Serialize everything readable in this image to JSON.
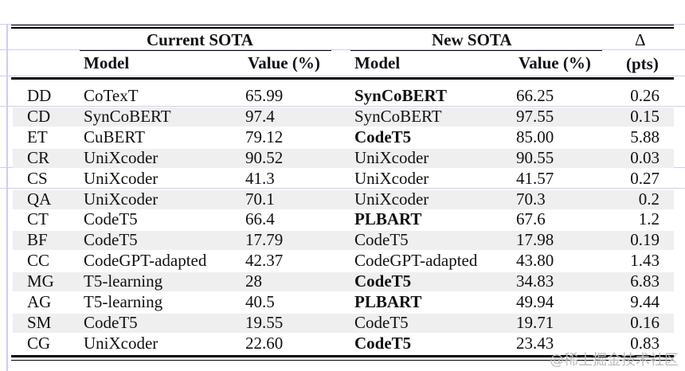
{
  "headers": {
    "group_current": "Current SOTA",
    "group_new": "New SOTA",
    "delta_symbol": "Δ",
    "model": "Model",
    "value": "Value (%)",
    "model_new": "Model",
    "value_new": "Value (%)",
    "pts": "(pts)"
  },
  "rows": [
    {
      "task": "DD",
      "cur_model": "CoTexT",
      "cur_value": "65.99",
      "new_model": "SynCoBERT",
      "new_bold": true,
      "new_value": "66.25",
      "delta": "0.26"
    },
    {
      "task": "CD",
      "cur_model": "SynCoBERT",
      "cur_value": "97.4",
      "new_model": "SynCoBERT",
      "new_bold": false,
      "new_value": "97.55",
      "delta": "0.15"
    },
    {
      "task": "ET",
      "cur_model": "CuBERT",
      "cur_value": "79.12",
      "new_model": "CodeT5",
      "new_bold": true,
      "new_value": "85.00",
      "delta": "5.88"
    },
    {
      "task": "CR",
      "cur_model": "UniXcoder",
      "cur_value": "90.52",
      "new_model": "UniXcoder",
      "new_bold": false,
      "new_value": "90.55",
      "delta": "0.03"
    },
    {
      "task": "CS",
      "cur_model": "UniXcoder",
      "cur_value": "41.3",
      "new_model": "UniXcoder",
      "new_bold": false,
      "new_value": "41.57",
      "delta": "0.27"
    },
    {
      "task": "QA",
      "cur_model": "UniXcoder",
      "cur_value": "70.1",
      "new_model": "UniXcoder",
      "new_bold": false,
      "new_value": "70.3",
      "delta": "0.2"
    },
    {
      "task": "CT",
      "cur_model": "CodeT5",
      "cur_value": "66.4",
      "new_model": "PLBART",
      "new_bold": true,
      "new_value": "67.6",
      "delta": "1.2"
    },
    {
      "task": "BF",
      "cur_model": "CodeT5",
      "cur_value": "17.79",
      "new_model": "CodeT5",
      "new_bold": false,
      "new_value": "17.98",
      "delta": "0.19"
    },
    {
      "task": "CC",
      "cur_model": "CodeGPT-adapted",
      "cur_value": "42.37",
      "new_model": "CodeGPT-adapted",
      "new_bold": false,
      "new_value": "43.80",
      "delta": "1.43"
    },
    {
      "task": "MG",
      "cur_model": "T5-learning",
      "cur_value": "28",
      "new_model": "CodeT5",
      "new_bold": true,
      "new_value": "34.83",
      "delta": "6.83"
    },
    {
      "task": "AG",
      "cur_model": "T5-learning",
      "cur_value": "40.5",
      "new_model": "PLBART",
      "new_bold": true,
      "new_value": "49.94",
      "delta": "9.44"
    },
    {
      "task": "SM",
      "cur_model": "CodeT5",
      "cur_value": "19.55",
      "new_model": "CodeT5",
      "new_bold": false,
      "new_value": "19.71",
      "delta": "0.16"
    },
    {
      "task": "CG",
      "cur_model": "UniXcoder",
      "cur_value": "22.60",
      "new_model": "CodeT5",
      "new_bold": true,
      "new_value": "23.43",
      "delta": "0.83"
    }
  ],
  "watermark": "@稀土掘金技术社区"
}
